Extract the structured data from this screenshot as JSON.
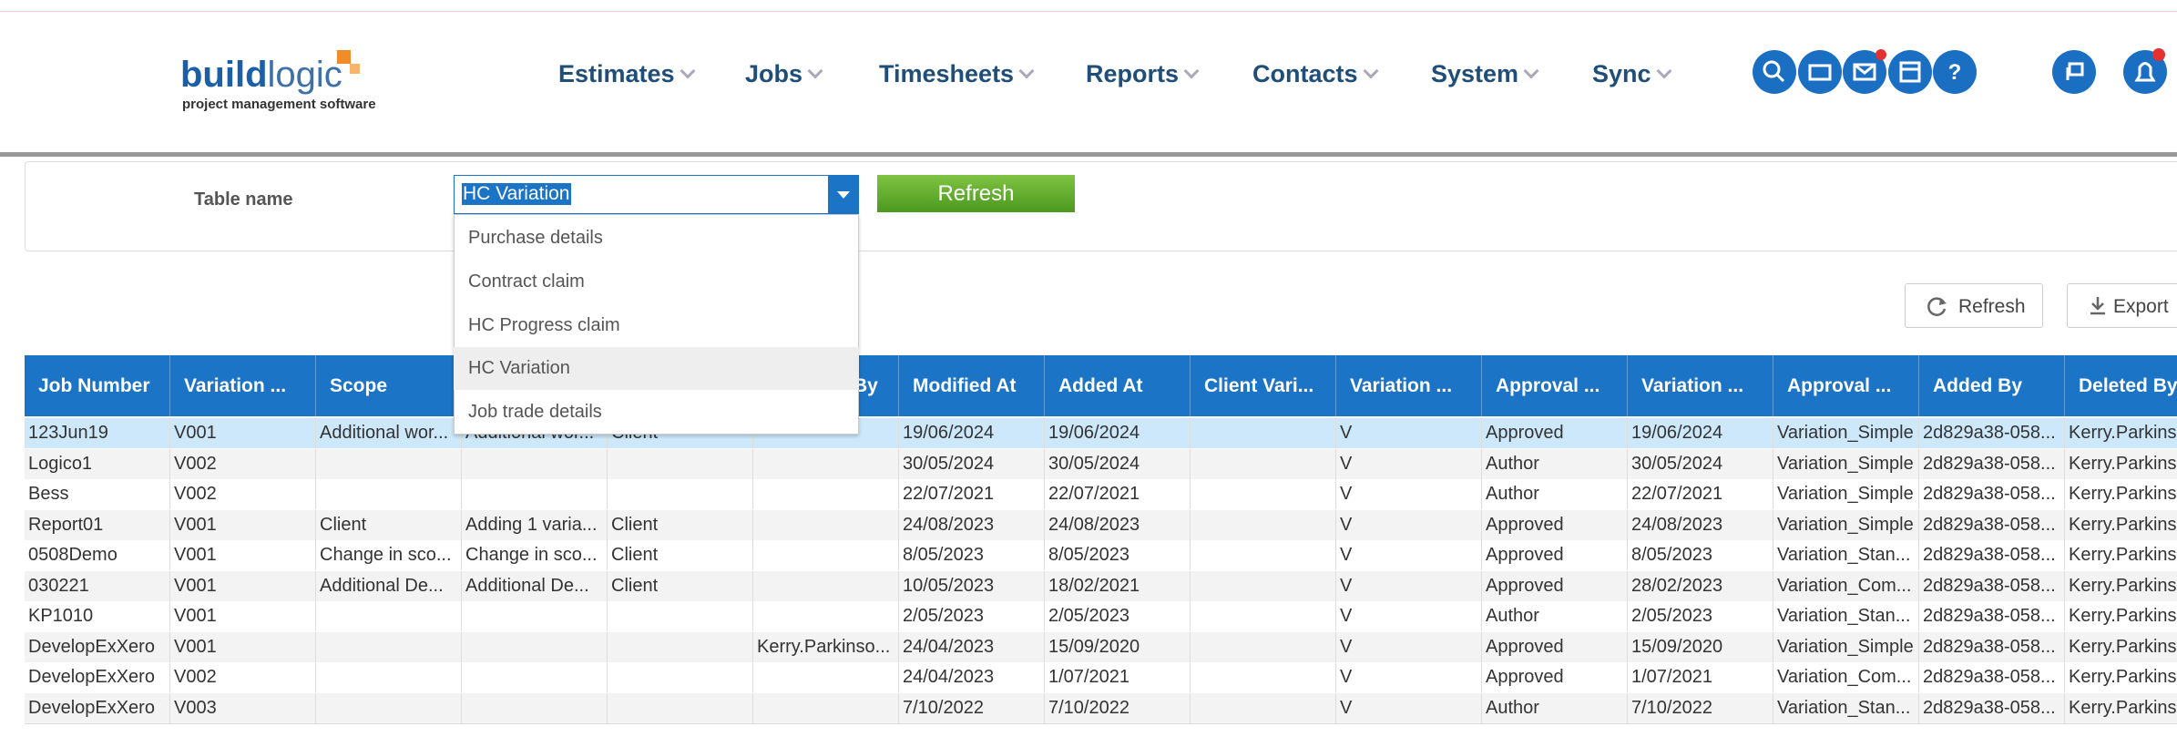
{
  "logo": {
    "brand_bold": "build",
    "brand_light": "logic",
    "tagline": "project management software"
  },
  "nav": [
    "Estimates",
    "Jobs",
    "Timesheets",
    "Reports",
    "Contacts",
    "System",
    "Sync"
  ],
  "filter": {
    "label": "Table name",
    "selected": "HC Variation",
    "button": "Refresh",
    "options": [
      "Purchase details",
      "Contract claim",
      "HC Progress claim",
      "HC Variation",
      "Job trade details"
    ]
  },
  "toolbar": {
    "refresh": "Refresh",
    "export": "Export"
  },
  "table": {
    "headers": [
      "Job Number",
      "Variation ...",
      "Scope",
      null,
      null,
      "By",
      "Modified At",
      "Added At",
      "Client Vari...",
      "Variation ...",
      "Approval ...",
      "Variation ...",
      "Approval ...",
      "Added By",
      "Deleted By"
    ],
    "rows": [
      [
        "123Jun19",
        "V001",
        "Additional wor...",
        "Additional wor...",
        "Client",
        null,
        "19/06/2024",
        "19/06/2024",
        null,
        "V",
        "Approved",
        "19/06/2024",
        "Variation_Simple",
        "2d829a38-058...",
        "Kerry.Parkins"
      ],
      [
        "Logico1",
        "V002",
        null,
        null,
        null,
        null,
        "30/05/2024",
        "30/05/2024",
        null,
        "V",
        "Author",
        "30/05/2024",
        "Variation_Simple",
        "2d829a38-058...",
        "Kerry.Parkins"
      ],
      [
        "Bess",
        "V002",
        null,
        null,
        null,
        null,
        "22/07/2021",
        "22/07/2021",
        null,
        "V",
        "Author",
        "22/07/2021",
        "Variation_Simple",
        "2d829a38-058...",
        "Kerry.Parkins"
      ],
      [
        "Report01",
        "V001",
        "Client",
        "Adding 1 varia...",
        "Client",
        null,
        "24/08/2023",
        "24/08/2023",
        null,
        "V",
        "Approved",
        "24/08/2023",
        "Variation_Simple",
        "2d829a38-058...",
        "Kerry.Parkins"
      ],
      [
        "0508Demo",
        "V001",
        "Change in sco...",
        "Change in sco...",
        "Client",
        null,
        "8/05/2023",
        "8/05/2023",
        null,
        "V",
        "Approved",
        "8/05/2023",
        "Variation_Stan...",
        "2d829a38-058...",
        "Kerry.Parkins"
      ],
      [
        "030221",
        "V001",
        "Additional De...",
        "Additional De...",
        "Client",
        null,
        "10/05/2023",
        "18/02/2021",
        null,
        "V",
        "Approved",
        "28/02/2023",
        "Variation_Com...",
        "2d829a38-058...",
        "Kerry.Parkins"
      ],
      [
        "KP1010",
        "V001",
        null,
        null,
        null,
        null,
        "2/05/2023",
        "2/05/2023",
        null,
        "V",
        "Author",
        "2/05/2023",
        "Variation_Stan...",
        "2d829a38-058...",
        "Kerry.Parkins"
      ],
      [
        "DevelopExXero",
        "V001",
        null,
        null,
        null,
        "Kerry.Parkinso...",
        "24/04/2023",
        "15/09/2020",
        null,
        "V",
        "Approved",
        "15/09/2020",
        "Variation_Simple",
        "2d829a38-058...",
        "Kerry.Parkins"
      ],
      [
        "DevelopExXero",
        "V002",
        null,
        null,
        null,
        null,
        "24/04/2023",
        "1/07/2021",
        null,
        "V",
        "Approved",
        "1/07/2021",
        "Variation_Com...",
        "2d829a38-058...",
        "Kerry.Parkins"
      ],
      [
        "DevelopExXero",
        "V003",
        null,
        null,
        null,
        null,
        "7/10/2022",
        "7/10/2022",
        null,
        "V",
        "Author",
        "7/10/2022",
        "Variation_Stan...",
        "2d829a38-058...",
        "Kerry.Parkins"
      ]
    ]
  }
}
